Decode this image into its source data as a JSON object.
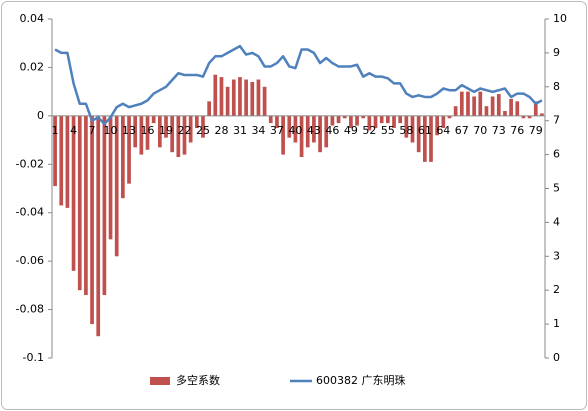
{
  "chart_data": {
    "type": "bar_line",
    "categories": [
      1,
      null,
      null,
      4,
      null,
      null,
      7,
      null,
      null,
      10,
      null,
      null,
      13,
      null,
      null,
      16,
      null,
      null,
      19,
      null,
      null,
      22,
      null,
      null,
      25,
      null,
      null,
      28,
      null,
      null,
      31,
      null,
      null,
      34,
      null,
      null,
      37,
      null,
      null,
      40,
      null,
      null,
      43,
      null,
      null,
      46,
      null,
      null,
      49,
      null,
      null,
      52,
      null,
      null,
      55,
      null,
      null,
      58,
      null,
      null,
      61,
      null,
      null,
      64,
      null,
      null,
      67,
      null,
      null,
      70,
      null,
      null,
      73,
      null,
      null,
      76,
      null,
      null,
      79,
      null
    ],
    "series": [
      {
        "name": "多空系数",
        "type": "bar",
        "color": "#c0504d",
        "values": [
          -0.029,
          -0.037,
          -0.038,
          -0.064,
          -0.072,
          -0.074,
          -0.086,
          -0.091,
          -0.074,
          -0.051,
          -0.058,
          -0.034,
          -0.028,
          -0.013,
          -0.016,
          -0.014,
          -0.003,
          -0.013,
          -0.009,
          -0.015,
          -0.017,
          -0.016,
          -0.011,
          -0.005,
          -0.009,
          0.006,
          0.017,
          0.016,
          0.012,
          0.015,
          0.016,
          0.015,
          0.014,
          0.015,
          0.012,
          -0.003,
          -0.005,
          -0.016,
          -0.009,
          -0.011,
          -0.017,
          -0.013,
          -0.011,
          -0.015,
          -0.013,
          -0.004,
          -0.003,
          -0.001,
          -0.005,
          -0.004,
          -0.001,
          -0.006,
          -0.005,
          -0.003,
          -0.003,
          -0.005,
          -0.003,
          -0.009,
          -0.011,
          -0.015,
          -0.019,
          -0.019,
          -0.008,
          -0.005,
          -0.001,
          0.004,
          0.01,
          0.01,
          0.008,
          0.01,
          0.004,
          0.008,
          0.009,
          0.002,
          0.007,
          0.006,
          -0.001,
          -0.001,
          0.006,
          0.001
        ]
      },
      {
        "name": "600382 广东明珠",
        "type": "line",
        "axis": "y2",
        "color": "#4f81bd",
        "values": [
          9.1,
          9.0,
          9.0,
          8.1,
          7.5,
          7.5,
          7.0,
          7.1,
          6.9,
          7.1,
          7.4,
          7.5,
          7.4,
          7.45,
          7.5,
          7.6,
          7.8,
          7.9,
          8.0,
          8.2,
          8.4,
          8.35,
          8.35,
          8.35,
          8.3,
          8.7,
          8.9,
          8.9,
          9.0,
          9.1,
          9.2,
          8.95,
          9.0,
          8.9,
          8.6,
          8.6,
          8.7,
          8.9,
          8.6,
          8.55,
          9.1,
          9.1,
          9.0,
          8.7,
          8.85,
          8.7,
          8.6,
          8.6,
          8.6,
          8.65,
          8.3,
          8.4,
          8.3,
          8.3,
          8.25,
          8.1,
          8.1,
          7.8,
          7.7,
          7.75,
          7.7,
          7.7,
          7.8,
          7.95,
          7.9,
          7.9,
          8.05,
          7.95,
          7.85,
          7.95,
          7.9,
          7.85,
          7.9,
          7.95,
          7.7,
          7.8,
          7.8,
          7.7,
          7.5,
          7.6
        ]
      }
    ],
    "ylim": [
      -0.1,
      0.04
    ],
    "yticks": [
      -0.1,
      -0.08,
      -0.06,
      -0.04,
      -0.02,
      0,
      0.02,
      0.04
    ],
    "y2lim": [
      0,
      10
    ],
    "y2ticks": [
      0,
      1,
      2,
      3,
      4,
      5,
      6,
      7,
      8,
      9,
      10
    ],
    "legend": "bottom"
  }
}
